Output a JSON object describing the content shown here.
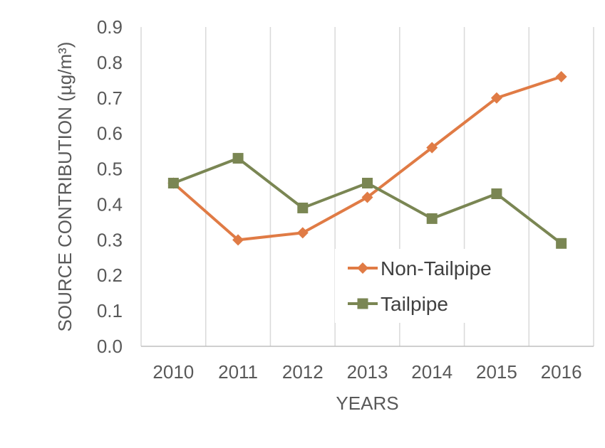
{
  "chart_data": {
    "type": "line",
    "title": "",
    "xlabel": "YEARS",
    "ylabel": "SOURCE CONTRIBUTION (µg/m³)",
    "categories": [
      "2010",
      "2011",
      "2012",
      "2013",
      "2014",
      "2015",
      "2016"
    ],
    "ylim": [
      0,
      0.9
    ],
    "yticks": [
      "0.0",
      "0.1",
      "0.2",
      "0.3",
      "0.4",
      "0.5",
      "0.6",
      "0.7",
      "0.8",
      "0.9"
    ],
    "grid": "vertical",
    "legend_position": "bottom-right",
    "series": [
      {
        "name": "Non-Tailpipe",
        "marker": "diamond",
        "color": "#E07B45",
        "values": [
          0.46,
          0.3,
          0.32,
          0.42,
          0.56,
          0.7,
          0.76
        ]
      },
      {
        "name": "Tailpipe",
        "marker": "square",
        "color": "#7A8653",
        "values": [
          0.46,
          0.53,
          0.39,
          0.46,
          0.36,
          0.43,
          0.29
        ]
      }
    ]
  }
}
